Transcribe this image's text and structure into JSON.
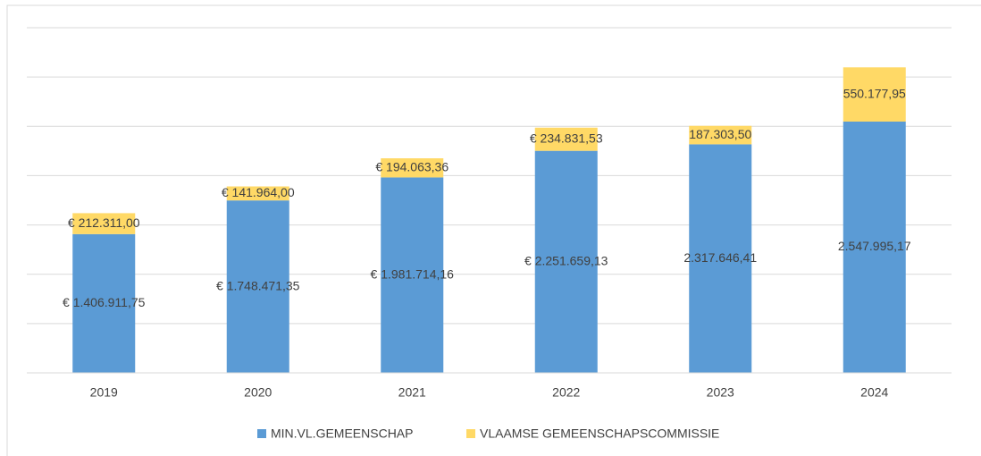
{
  "chart_data": {
    "type": "stacked_bar",
    "categories": [
      "2019",
      "2020",
      "2021",
      "2022",
      "2023",
      "2024"
    ],
    "series": [
      {
        "name": "MIN.VL.GEMEENSCHAP",
        "color": "#5b9bd5",
        "values": [
          1406911.75,
          1748471.35,
          1981714.16,
          2251659.13,
          2317646.41,
          2547995.17
        ],
        "value_labels": [
          "€ 1.406.911,75",
          "€ 1.748.471,35",
          "€ 1.981.714,16",
          "€ 2.251.659,13",
          "2.317.646,41",
          "2.547.995,17"
        ]
      },
      {
        "name": "VLAAMSE GEMEENSCHAPSCOMMISSIE",
        "color": "#ffd966",
        "values": [
          212311.0,
          141964.0,
          194063.36,
          234831.53,
          187303.5,
          550177.95
        ],
        "value_labels": [
          "€ 212.311,00",
          "€ 141.964,00",
          "€ 194.063,36",
          "€ 234.831,53",
          "187.303,50",
          "550.177,95"
        ]
      }
    ],
    "ylim": [
      0,
      3500000
    ],
    "yticks": [
      0,
      500000,
      1000000,
      1500000,
      2000000,
      2500000,
      3000000,
      3500000
    ],
    "grid": true,
    "legend": "bottom"
  }
}
